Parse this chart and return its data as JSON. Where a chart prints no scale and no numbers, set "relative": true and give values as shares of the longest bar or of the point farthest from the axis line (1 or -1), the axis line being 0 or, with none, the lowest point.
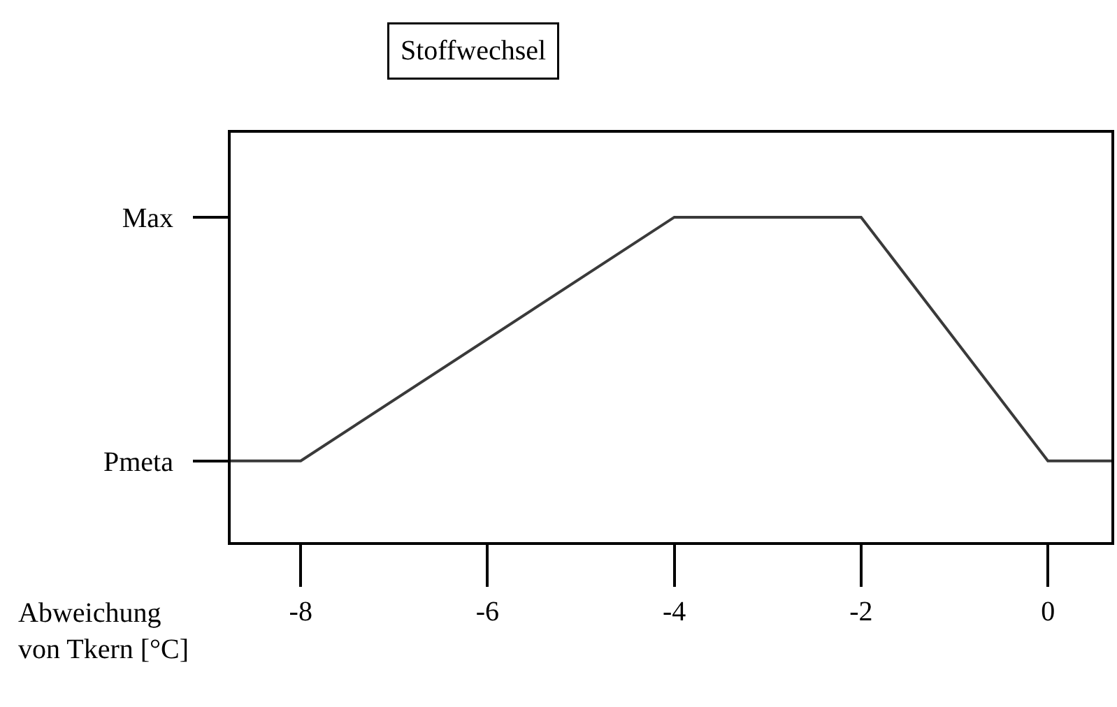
{
  "chart_data": {
    "type": "line",
    "title": "Stoffwechsel",
    "xlabel": "Abweichung\nvon Tkern [°C]",
    "x": [
      -8.75,
      -8,
      -4,
      -2,
      0,
      0.68
    ],
    "series": [
      {
        "color": "#3a3a3a",
        "values": [
          0.25,
          0.25,
          1,
          1,
          0.25,
          0.25
        ]
      }
    ],
    "relative": true,
    "xlim": [
      -8.75,
      0.68
    ],
    "xticks": [
      -8,
      -6,
      -4,
      -2,
      0
    ],
    "annotations": [
      "Pmeta",
      "Max"
    ],
    "marker": "none",
    "line_style": "solid"
  }
}
